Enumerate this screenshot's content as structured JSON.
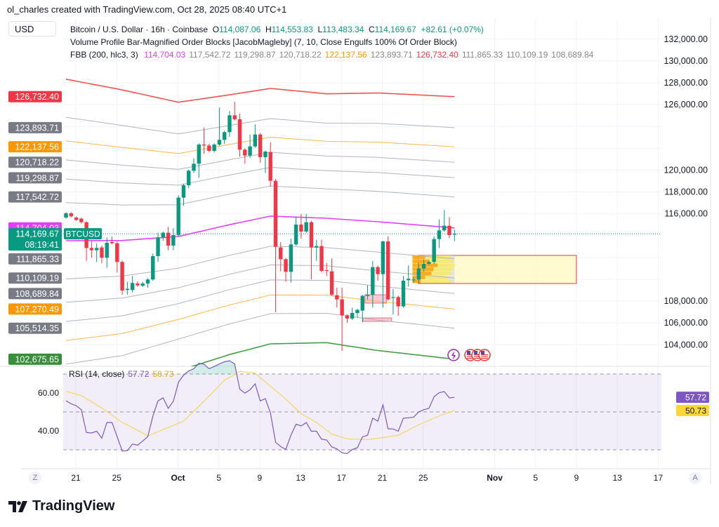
{
  "credit": "ol_charles created with TradingView.com, Oct 28, 2025 08:40 UTC+1",
  "currency": "USD",
  "legend": {
    "symbol": "Bitcoin / U.S. Dollar · 16h · Coinbase",
    "o_label": "O",
    "o": "114,087.06",
    "h_label": "H",
    "h": "114,553.83",
    "l_label": "L",
    "l": "113,483.34",
    "c_label": "C",
    "c": "114,169.67",
    "change": "+82.61 (+0.07%)",
    "indicator1": "Volume Profile Bar-Magnified Order Blocks [JacobMagleby] (7, 10, Close Engulfs 100% Of Order Block)",
    "indicator2_name": "FBB (200, hlc3, 3)",
    "indicator2_values": [
      {
        "v": "114,704.03",
        "color": "#e040fb"
      },
      {
        "v": "117,542.72",
        "color": "#888888"
      },
      {
        "v": "119,298.87",
        "color": "#888888"
      },
      {
        "v": "120,718.22",
        "color": "#888888"
      },
      {
        "v": "122,137.56",
        "color": "#ff9800"
      },
      {
        "v": "123,893.71",
        "color": "#888888"
      },
      {
        "v": "126,732.40",
        "color": "#f23645"
      },
      {
        "v": "111,865.33",
        "color": "#888888"
      },
      {
        "v": "110,109.19",
        "color": "#888888"
      },
      {
        "v": "108,689.84",
        "color": "#888888"
      }
    ]
  },
  "logo": "TradingView",
  "chart_data": {
    "type": "candlestick",
    "symbol": "BTCUSD",
    "colors": {
      "up": "#089981",
      "down": "#f23645",
      "basis": "#e040fb",
      "band": "#b2b5be",
      "band_618": "#ffb74d",
      "upper_1": "#ef5350",
      "lower_1": "#43a047",
      "rsi": "#7e57c2",
      "rsi_ma": "#f5d76e"
    },
    "price_axis_labels": [
      "132,000.00",
      "130,000.00",
      "128,000.00",
      "126,000.00",
      "120,000.00",
      "118,000.00",
      "116,000.00",
      "108,000.00",
      "106,000.00",
      "104,000.00"
    ],
    "x_ticks": [
      {
        "date": "2025-09-21",
        "label": "21"
      },
      {
        "date": "2025-09-25",
        "label": "25"
      },
      {
        "date": "2025-10-01",
        "label": "Oct",
        "bold": true
      },
      {
        "date": "2025-10-05",
        "label": "5"
      },
      {
        "date": "2025-10-09",
        "label": "9"
      },
      {
        "date": "2025-10-13",
        "label": "13"
      },
      {
        "date": "2025-10-17",
        "label": "17"
      },
      {
        "date": "2025-10-21",
        "label": "21"
      },
      {
        "date": "2025-10-25",
        "label": "25"
      },
      {
        "date": "2025-11-01",
        "label": "Nov",
        "bold": true
      },
      {
        "date": "2025-11-05",
        "label": "5"
      },
      {
        "date": "2025-11-09",
        "label": "9"
      },
      {
        "date": "2025-11-13",
        "label": "13"
      },
      {
        "date": "2025-11-17",
        "label": "17"
      }
    ],
    "candles_ohlc": [
      [
        115656,
        116150,
        115550,
        116042
      ],
      [
        116042,
        116150,
        115650,
        115763
      ],
      [
        115656,
        115750,
        115350,
        115442
      ],
      [
        115549,
        115650,
        115100,
        115227
      ],
      [
        115227,
        115300,
        111691,
        112870
      ],
      [
        112870,
        113513,
        111970,
        112655
      ],
      [
        112655,
        113298,
        111584,
        112870
      ],
      [
        112913,
        113100,
        111477,
        111970
      ],
      [
        111970,
        113835,
        111049,
        113341
      ],
      [
        113405,
        113899,
        113192,
        113298
      ],
      [
        113298,
        113450,
        110620,
        111584
      ],
      [
        111584,
        111700,
        108584,
        108970
      ],
      [
        109012,
        109762,
        108584,
        109120
      ],
      [
        109012,
        110298,
        108798,
        109655
      ],
      [
        109612,
        109800,
        109300,
        109441
      ],
      [
        109398,
        109750,
        109300,
        109612
      ],
      [
        109612,
        110084,
        109226,
        109977
      ],
      [
        109977,
        112334,
        109850,
        112120
      ],
      [
        112120,
        114263,
        111584,
        113834
      ],
      [
        113834,
        114370,
        113513,
        114263
      ],
      [
        114263,
        114799,
        112655,
        113084
      ],
      [
        113084,
        114692,
        112655,
        114048
      ],
      [
        114048,
        117692,
        113900,
        117477
      ],
      [
        117477,
        118750,
        116727,
        118613
      ],
      [
        118613,
        120050,
        118334,
        119942
      ],
      [
        119942,
        121078,
        119728,
        120585
      ],
      [
        120585,
        122450,
        119299,
        122342
      ],
      [
        122342,
        123906,
        121485,
        122256
      ],
      [
        122256,
        122400,
        121650,
        121763
      ],
      [
        121763,
        122450,
        121614,
        122342
      ],
      [
        122342,
        125728,
        122200,
        122771
      ],
      [
        122771,
        123600,
        122406,
        123478
      ],
      [
        123478,
        125407,
        123050,
        125021
      ],
      [
        125021,
        126264,
        124550,
        124656
      ],
      [
        124656,
        125192,
        121228,
        121871
      ],
      [
        121871,
        122000,
        120585,
        121335
      ],
      [
        121335,
        123264,
        121121,
        122171
      ],
      [
        122171,
        124185,
        122050,
        123264
      ],
      [
        123264,
        123400,
        120692,
        121185
      ],
      [
        121185,
        121800,
        119728,
        121700
      ],
      [
        121657,
        122557,
        118485,
        119021
      ],
      [
        119021,
        119200,
        106975,
        112976
      ],
      [
        112911,
        113404,
        110725,
        111840
      ],
      [
        111840,
        111950,
        109761,
        110682
      ],
      [
        110682,
        113726,
        109697,
        113190
      ],
      [
        113190,
        115761,
        113050,
        115011
      ],
      [
        115011,
        115976,
        113726,
        114369
      ],
      [
        114369,
        115976,
        114250,
        115226
      ],
      [
        115226,
        115350,
        109975,
        112911
      ],
      [
        112911,
        113619,
        111690,
        113040
      ],
      [
        113040,
        113619,
        110650,
        110768
      ],
      [
        110832,
        111475,
        110297,
        110768
      ],
      [
        110725,
        111904,
        108450,
        108582
      ],
      [
        108539,
        109225,
        107404,
        108154
      ],
      [
        108154,
        109225,
        103439,
        106697
      ],
      [
        106697,
        106800,
        106011,
        106397
      ],
      [
        106397,
        107404,
        106250,
        106911
      ],
      [
        106911,
        107300,
        106483,
        107190
      ],
      [
        107125,
        108600,
        106054,
        108475
      ],
      [
        108475,
        109440,
        108154,
        108582
      ],
      [
        108582,
        111690,
        107404,
        111111
      ],
      [
        111111,
        111261,
        109868,
        110468
      ],
      [
        110468,
        113511,
        107404,
        113469
      ],
      [
        113469,
        113940,
        108050,
        108154
      ],
      [
        108325,
        109118,
        106761,
        108368
      ],
      [
        108368,
        108500,
        106654,
        107511
      ],
      [
        107511,
        110297,
        107400,
        109868
      ],
      [
        109911,
        111261,
        109333,
        110040
      ],
      [
        109911,
        110200,
        109700,
        109975
      ],
      [
        109975,
        111475,
        109654,
        110982
      ],
      [
        110982,
        111797,
        110700,
        111411
      ],
      [
        111411,
        111700,
        111300,
        111583
      ],
      [
        111583,
        113940,
        111400,
        113683
      ],
      [
        113683,
        115483,
        112868,
        114476
      ],
      [
        114476,
        116340,
        114350,
        114904
      ],
      [
        114904,
        115697,
        113769,
        114047
      ],
      [
        114087.06,
        114553.83,
        113483.34,
        114169.67
      ]
    ],
    "last_price": {
      "label": "BTCUSD",
      "value": "114,169.67",
      "countdown": "08:19:41",
      "color": "#089981"
    },
    "fbb": {
      "name": "FBB (200, hlc3, 3)",
      "ratios": [
        0.236,
        0.382,
        0.5,
        0.618,
        0.764,
        1
      ],
      "basis_samples": [
        [
          1,
          113533
        ],
        [
          12,
          113550
        ],
        [
          23,
          113919
        ],
        [
          33,
          115000
        ],
        [
          41,
          115783
        ],
        [
          52,
          115590
        ],
        [
          62,
          115270
        ],
        [
          77,
          114704.03
        ]
      ],
      "deviation_samples": [
        [
          1,
          14800
        ],
        [
          12,
          13800
        ],
        [
          23,
          12300
        ],
        [
          33,
          11900
        ],
        [
          41,
          11700
        ],
        [
          52,
          11400
        ],
        [
          62,
          11800
        ],
        [
          77,
          12028.37
        ]
      ]
    },
    "price_badges": [
      {
        "v": "126,732.40",
        "color": "#f23645"
      },
      {
        "v": "123,893.71",
        "color": "#787b86"
      },
      {
        "v": "122,137.56",
        "color": "#ff9800"
      },
      {
        "v": "120,718.22",
        "color": "#787b86"
      },
      {
        "v": "119,298.87",
        "color": "#787b86"
      },
      {
        "v": "117,542.72",
        "color": "#787b86"
      },
      {
        "v": "114,704.03",
        "color": "#e040fb"
      },
      {
        "v": "111,865.33",
        "color": "#787b86"
      },
      {
        "v": "110,109.19",
        "color": "#787b86"
      },
      {
        "v": "108,689.84",
        "color": "#787b86"
      },
      {
        "v": "107,270.49",
        "color": "#ff9800"
      },
      {
        "v": "105,514.35",
        "color": "#787b86"
      },
      {
        "v": "102,675.65",
        "color": "#388e3c"
      }
    ],
    "order_blocks": [
      {
        "start": "2025-10-24.5",
        "end": "2025-11-09",
        "top": 112182,
        "bottom": 109610,
        "fill": "#fff9c4",
        "border": "#e53935"
      },
      {
        "start": "2025-10-19.3",
        "end": "2025-10-21.4",
        "top": 108581,
        "bottom": 107810,
        "fill": "#f8bbd0",
        "border": "#e57373"
      },
      {
        "start": "2025-10-19.1",
        "end": "2025-10-21.9",
        "top": 106454,
        "bottom": 106140,
        "fill": "#f8bbd0",
        "border": "#e57373"
      }
    ],
    "rsi": {
      "title": "RSI (14, close)",
      "value": "57.72",
      "ma_value": "50.73",
      "levels": [
        70,
        50,
        30
      ],
      "axis_labels": [
        "60.00",
        "40.00"
      ],
      "values": [
        55.9,
        54.3,
        53.3,
        51.2,
        39.1,
        38.9,
        39.8,
        36.1,
        44.4,
        44.4,
        37,
        29.3,
        29.6,
        33,
        32.5,
        34.6,
        37,
        47.9,
        55.8,
        57.4,
        51.9,
        55.6,
        65.7,
        69.4,
        71.6,
        72.8,
        75.7,
        75.1,
        72.8,
        74,
        75.3,
        76.5,
        77,
        75.3,
        62,
        59.9,
        61.7,
        64.8,
        55.8,
        57,
        49.4,
        34,
        31.7,
        30.2,
        37.7,
        43.5,
        42.6,
        44.4,
        39.8,
        39.8,
        35.6,
        35.2,
        31.5,
        30.5,
        28.4,
        28,
        30.2,
        31.1,
        36.8,
        37.7,
        46.7,
        45.1,
        53.7,
        41.1,
        41,
        39.8,
        46.7,
        46.9,
        47.2,
        50,
        51.2,
        51.9,
        58,
        60.1,
        60.7,
        57.4,
        57.72
      ],
      "ma_samples": [
        [
          1,
          60.9
        ],
        [
          4,
          58.6
        ],
        [
          8,
          52.1
        ],
        [
          12,
          44.4
        ],
        [
          16,
          38.9
        ],
        [
          17,
          37.3
        ],
        [
          20,
          40.7
        ],
        [
          24,
          45.1
        ],
        [
          28,
          55.6
        ],
        [
          32,
          66.7
        ],
        [
          35,
          71.4
        ],
        [
          38,
          70.4
        ],
        [
          41,
          63.6
        ],
        [
          44,
          56.8
        ],
        [
          47,
          49.1
        ],
        [
          50,
          44.4
        ],
        [
          53,
          38.3
        ],
        [
          56,
          35.8
        ],
        [
          60,
          35.4
        ],
        [
          63,
          36.4
        ],
        [
          66,
          37.7
        ],
        [
          70,
          43.2
        ],
        [
          74,
          47.9
        ],
        [
          77,
          50.73
        ]
      ]
    },
    "events": [
      "lightning-icon",
      "us-flag-icon",
      "us-flag-icon",
      "us-flag-icon"
    ]
  },
  "axis_buttons": {
    "left": "Z",
    "right": "A"
  }
}
